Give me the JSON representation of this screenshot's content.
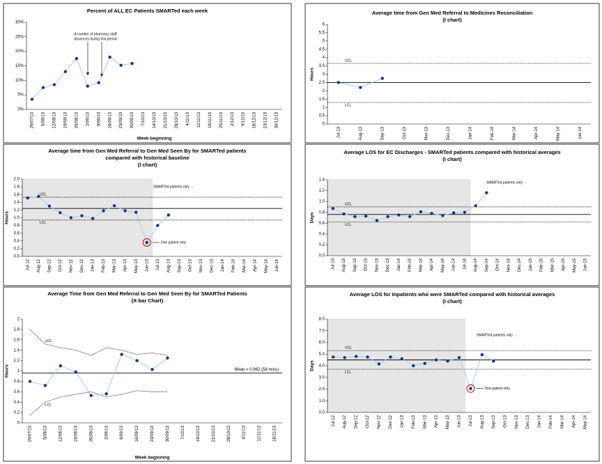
{
  "chart_data": [
    {
      "type": "line",
      "title": [
        "Percent of ALL EC Patients SMARTed each week"
      ],
      "x_label": "Week beginning",
      "categories": [
        "29/07/13",
        "5/08/13",
        "12/08/13",
        "19/08/13",
        "26/08/13",
        "2/09/13",
        "9/09/13",
        "16/09/13",
        "23/09/13",
        "30/09/13",
        "7/10/13",
        "14/10/13",
        "21/10/13",
        "28/10/13",
        "4/11/13",
        "11/11/13",
        "18/11/13",
        "25/11/13",
        "2/12/13",
        "9/12/13",
        "16/12/13",
        "23/12/13",
        "30/12/13"
      ],
      "values": [
        3.5,
        7.5,
        8.5,
        13,
        17.5,
        8,
        9.2,
        18,
        15.2,
        15.8,
        null,
        null,
        null,
        null,
        null,
        null,
        null,
        null,
        null,
        null,
        null,
        null,
        null
      ],
      "ylim": [
        0,
        30
      ],
      "yticks": [
        {
          "value": 0,
          "label": "0%"
        },
        {
          "value": 5,
          "label": "5%"
        },
        {
          "value": 10,
          "label": "10%"
        },
        {
          "value": 15,
          "label": "15%"
        },
        {
          "value": 20,
          "label": "20%"
        },
        {
          "value": 25,
          "label": "25%"
        },
        {
          "value": 30,
          "label": "30%"
        }
      ],
      "line_color": "#99ccff",
      "marker_color": "#1f3080",
      "annotations": [
        "A number of pharmacy staff",
        "absences during this period"
      ]
    },
    {
      "type": "line",
      "title": [
        "Average time from Gen Med Referral to Gen Med Seen By for SMARTed patients",
        "compared with historical baseline"
      ],
      "subtitle": "(I chart)",
      "y_label": "Hours",
      "categories": [
        "Jul-12",
        "Aug-12",
        "Sep-12",
        "Oct-12",
        "Nov-12",
        "Dec-12",
        "Jan-13",
        "Feb-13",
        "Mar-13",
        "Apr-13",
        "May-13",
        "Jun-13",
        "Jul-13",
        "Aug-13",
        "Sep-13",
        "Oct-13",
        "Nov-13",
        "Dec-13",
        "Jan-14",
        "Feb-14",
        "Mar-14",
        "Apr-14",
        "May-14",
        "Jun-14"
      ],
      "values": [
        1.51,
        1.55,
        1.3,
        1.13,
        1.0,
        1.05,
        0.98,
        1.18,
        1.31,
        1.18,
        1.14,
        0.36,
        0.8,
        1.07,
        null,
        null,
        null,
        null,
        null,
        null,
        null,
        null,
        null,
        null
      ],
      "ylim": [
        0,
        2
      ],
      "yticks": [
        {
          "value": 0,
          "label": "0.0"
        },
        0.2,
        0.4,
        0.6,
        0.8,
        {
          "value": 1,
          "label": "1.0"
        },
        1.2,
        1.4,
        1.6,
        1.8,
        {
          "value": 2,
          "label": "2.0"
        }
      ],
      "mean": 1.24,
      "ucl": 1.53,
      "lcl": 0.94,
      "ucl_label": "UCL",
      "lcl_label": "LCL",
      "line_color": "#99ccff",
      "marker_color": "#1f3080",
      "annotations": [
        "SMARTed patients only →",
        "One patient only"
      ]
    },
    {
      "type": "line",
      "title": [
        "Average Time from Gen Med Referral to Gen Med Seen By for SMARTed Patients"
      ],
      "subtitle": "(X-bar Chart)",
      "y_label": "Hours",
      "x_label": "Week beginning",
      "categories": [
        "29/07/13",
        "5/08/13",
        "12/08/13",
        "19/08/13",
        "26/08/13",
        "2/09/13",
        "9/09/13",
        "16/09/13",
        "23/09/13",
        "30/09/13",
        "7/10/13",
        "14/10/13",
        "21/10/13",
        "28/10/13",
        "4/11/13",
        "11/11/13",
        "18/11/13"
      ],
      "values": [
        0.8,
        0.72,
        1.1,
        0.98,
        0.53,
        0.56,
        1.32,
        1.2,
        1.03,
        1.25,
        null,
        null,
        null,
        null,
        null,
        null,
        null
      ],
      "ylim": [
        0,
        2
      ],
      "yticks": [
        0,
        0.2,
        0.4,
        0.6,
        0.8,
        1,
        1.2,
        1.4,
        1.6,
        1.8,
        2
      ],
      "mean": 0.962,
      "mean_label": "Mean = 0.962 (58 mins)",
      "ucl": [
        1.8,
        1.52,
        1.45,
        1.4,
        1.3,
        1.45,
        1.4,
        1.32,
        1.35,
        1.3
      ],
      "lcl": [
        0.15,
        0.4,
        0.5,
        0.55,
        0.6,
        0.5,
        0.55,
        0.62,
        0.6,
        0.6
      ],
      "ucl_label": "UCL",
      "lcl_label": "LCL",
      "line_color": "#99ccff",
      "marker_color": "#1f3080"
    },
    {
      "type": "line",
      "title": [
        "Average time from Gen Med Referral to Medicines Reconciliation"
      ],
      "subtitle": "(I chart)",
      "y_label": "Hours",
      "categories": [
        "Jul-13",
        "Aug-13",
        "Sep-13",
        "Oct-13",
        "Nov-13",
        "Dec-13",
        "Jan-14",
        "Feb-14",
        "Mar-14",
        "Apr-14",
        "May-14",
        "Jun-14"
      ],
      "values": [
        2.5,
        2.2,
        2.75,
        null,
        null,
        null,
        null,
        null,
        null,
        null,
        null,
        null
      ],
      "ylim": [
        0,
        6
      ],
      "yticks": [
        0,
        0.5,
        1,
        1.5,
        2,
        2.5,
        3,
        3.5,
        4,
        4.5,
        5,
        5.5,
        6
      ],
      "mean": 2.5,
      "ucl": 3.65,
      "lcl": 1.3,
      "ucl_label": "UCL",
      "lcl_label": "LCL",
      "line_color": "#99ccff",
      "marker_color": "#1f3080"
    },
    {
      "type": "line",
      "title": [
        "Average LOS for EC Discharges - SMARTed patients compared with historical averages"
      ],
      "subtitle": "(I chart)",
      "y_label": "Days",
      "categories": [
        "Jul-13",
        "Aug-13",
        "Sep-13",
        "Oct-13",
        "Nov-13",
        "Dec-13",
        "Jan-14",
        "Feb-14",
        "Mar-14",
        "Apr-14",
        "May-14",
        "Jun-14",
        "Jul-14",
        "Aug-14",
        "Sep-14",
        "Oct-14",
        "Nov-14",
        "Dec-14",
        "Jan-15",
        "Feb-15",
        "Mar-15",
        "Apr-15",
        "May-15",
        "Jun-15"
      ],
      "values": [
        0.87,
        0.77,
        0.72,
        0.73,
        0.65,
        0.72,
        0.75,
        0.72,
        0.81,
        0.78,
        0.74,
        0.79,
        0.8,
        0.92,
        1.16,
        null,
        null,
        null,
        null,
        null,
        null,
        null,
        null,
        null
      ],
      "ylim": [
        0,
        1.4
      ],
      "yticks": [
        {
          "value": 0,
          "label": "0.0"
        },
        0.2,
        0.4,
        0.6,
        0.8,
        {
          "value": 1,
          "label": "1.0"
        },
        1.2,
        1.4
      ],
      "mean": 0.76,
      "ucl": 0.9,
      "lcl": 0.62,
      "ucl_label": "UCL",
      "lcl_label": "LCL",
      "line_color": "#99ccff",
      "marker_color": "#1f3080",
      "annotations": [
        "SMARTed patients only →"
      ]
    },
    {
      "type": "line",
      "title": [
        "Average LOS for Inpatients who were SMARTed compared with historical averages"
      ],
      "subtitle": "(I chart)",
      "y_label": "Days",
      "categories": [
        "Jul-12",
        "Aug-12",
        "Sep-12",
        "Oct-12",
        "Nov-12",
        "Dec-12",
        "Jan-13",
        "Feb-13",
        "Mar-13",
        "Apr-13",
        "May-13",
        "Jun-13",
        "Jul-13",
        "Aug-13",
        "Sep-13",
        "Oct-13",
        "Nov-13",
        "Dec-13",
        "Jan-14",
        "Feb-14",
        "Mar-14",
        "Apr-14",
        "May-14"
      ],
      "values": [
        4.75,
        4.7,
        4.8,
        4.75,
        4.15,
        4.75,
        4.6,
        4.0,
        4.2,
        4.5,
        4.4,
        4.7,
        2.05,
        4.95,
        4.4,
        null,
        null,
        null,
        null,
        null,
        null,
        null,
        null
      ],
      "ylim": [
        0,
        8
      ],
      "yticks": [
        {
          "value": 0,
          "label": "0.0"
        },
        {
          "value": 1,
          "label": "1.0"
        },
        {
          "value": 2,
          "label": "2.0"
        },
        {
          "value": 3,
          "label": "3.0"
        },
        {
          "value": 4,
          "label": "4.0"
        },
        {
          "value": 5,
          "label": "5.0"
        },
        {
          "value": 6,
          "label": "6.0"
        },
        {
          "value": 7,
          "label": "7.0"
        },
        {
          "value": 8,
          "label": "8.0"
        }
      ],
      "mean": 4.5,
      "ucl": 5.3,
      "lcl": 3.7,
      "ucl_label": "UCL",
      "lcl_label": "LCL",
      "line_color": "#99ccff",
      "marker_color": "#1f3080",
      "annotations": [
        "SMARTed patients only →",
        "One patient only"
      ]
    }
  ]
}
